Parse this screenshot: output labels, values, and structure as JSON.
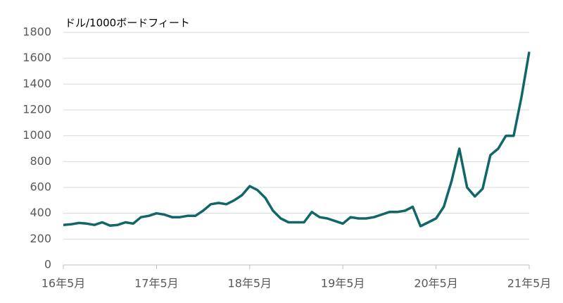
{
  "chart_data": {
    "type": "line",
    "y_label": "ドル/1000ボードフィート",
    "x": [
      "2016-05",
      "2016-06",
      "2016-07",
      "2016-08",
      "2016-09",
      "2016-10",
      "2016-11",
      "2016-12",
      "2017-01",
      "2017-02",
      "2017-03",
      "2017-04",
      "2017-05",
      "2017-06",
      "2017-07",
      "2017-08",
      "2017-09",
      "2017-10",
      "2017-11",
      "2017-12",
      "2018-01",
      "2018-02",
      "2018-03",
      "2018-04",
      "2018-05",
      "2018-06",
      "2018-07",
      "2018-08",
      "2018-09",
      "2018-10",
      "2018-11",
      "2018-12",
      "2019-01",
      "2019-02",
      "2019-03",
      "2019-04",
      "2019-05",
      "2019-06",
      "2019-07",
      "2019-08",
      "2019-09",
      "2019-10",
      "2019-11",
      "2019-12",
      "2020-01",
      "2020-02",
      "2020-03",
      "2020-04",
      "2020-05",
      "2020-06",
      "2020-07",
      "2020-08",
      "2020-09",
      "2020-10",
      "2020-11",
      "2020-12",
      "2021-01",
      "2021-02",
      "2021-03",
      "2021-04",
      "2021-05"
    ],
    "values": [
      310,
      315,
      325,
      320,
      310,
      330,
      305,
      310,
      330,
      320,
      370,
      380,
      400,
      390,
      370,
      370,
      380,
      380,
      420,
      470,
      480,
      470,
      500,
      540,
      610,
      580,
      520,
      420,
      360,
      330,
      330,
      330,
      410,
      370,
      360,
      340,
      320,
      370,
      360,
      360,
      370,
      390,
      410,
      410,
      420,
      450,
      300,
      330,
      360,
      450,
      650,
      900,
      600,
      530,
      590,
      850,
      900,
      1000,
      1000,
      1300,
      1650
    ],
    "color": "#11666a",
    "xlim": [
      "2016-05",
      "2021-05"
    ],
    "xticks": [
      {
        "value": "2016-05",
        "label": "16年5月"
      },
      {
        "value": "2017-05",
        "label": "17年5月"
      },
      {
        "value": "2018-05",
        "label": "18年5月"
      },
      {
        "value": "2019-05",
        "label": "19年5月"
      },
      {
        "value": "2020-05",
        "label": "20年5月"
      },
      {
        "value": "2021-05",
        "label": "21年5月"
      }
    ],
    "ylim": [
      0,
      1800
    ],
    "yticks": [
      0,
      200,
      400,
      600,
      800,
      1000,
      1200,
      1400,
      1600,
      1800
    ],
    "grid": true
  }
}
